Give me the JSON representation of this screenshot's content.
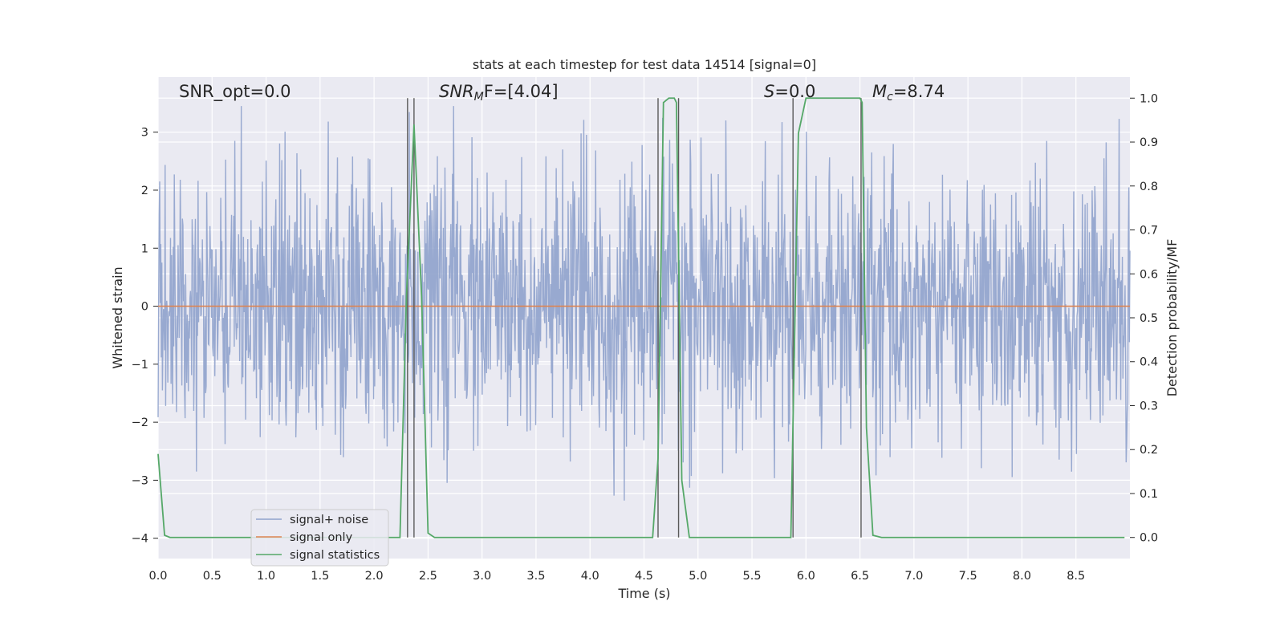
{
  "chart_data": {
    "type": "line",
    "title": "stats at each timestep for test data 14514 [signal=0]",
    "xlabel": "Time (s)",
    "ylabel": "Whitened strain",
    "y2label": "Detection probability/MF",
    "xlim": [
      0.0,
      9.0
    ],
    "ylim": [
      -4.35,
      3.95
    ],
    "y2lim": [
      -0.048,
      1.048
    ],
    "xticks": [
      "0.0",
      "0.5",
      "1.0",
      "1.5",
      "2.0",
      "2.5",
      "3.0",
      "3.5",
      "4.0",
      "4.5",
      "5.0",
      "5.5",
      "6.0",
      "6.5",
      "7.0",
      "7.5",
      "8.0",
      "8.5"
    ],
    "yticks": [
      "3",
      "2",
      "1",
      "0",
      "−1",
      "−2",
      "−3",
      "−4"
    ],
    "y2ticks": [
      "1.0",
      "0.9",
      "0.8",
      "0.7",
      "0.6",
      "0.5",
      "0.4",
      "0.3",
      "0.2",
      "0.1",
      "0.0"
    ],
    "grid": true,
    "legend_position": "lower-left",
    "annotations": {
      "snr_opt": "SNR_opt=0.0",
      "snr_mf_sym": "SNR",
      "snr_mf_sub": "M",
      "snr_mf_rest": "F=[4.04]",
      "s_sym": "S",
      "s_rest": "=0.0",
      "mc_sym": "M",
      "mc_sub": "c",
      "mc_rest": "=8.74"
    },
    "series": [
      {
        "name": "signal+ noise",
        "color": "#8fa2cc",
        "description_range": [
          -3.7,
          3.45
        ],
        "n_samples": 1800,
        "seed": 14514
      },
      {
        "name": "signal only",
        "color": "#dd8452",
        "x": [
          0.0,
          9.0
        ],
        "y": [
          0.0,
          0.0
        ]
      },
      {
        "name": "signal statistics",
        "color": "#55a868",
        "axis": "right",
        "x": [
          0.0,
          0.06,
          0.11,
          0.5,
          1.0,
          1.5,
          2.0,
          2.24,
          2.3,
          2.37,
          2.44,
          2.5,
          2.56,
          3.0,
          3.5,
          4.0,
          4.5,
          4.58,
          4.63,
          4.68,
          4.73,
          4.78,
          4.8,
          4.85,
          4.92,
          5.0,
          5.5,
          5.86,
          5.93,
          6.0,
          6.5,
          6.52,
          6.56,
          6.62,
          6.7,
          7.0,
          7.5,
          8.0,
          8.5,
          8.95
        ],
        "y": [
          0.19,
          0.005,
          0.0,
          0.0,
          0.0,
          0.0,
          0.0,
          0.0,
          0.55,
          0.94,
          0.55,
          0.01,
          0.0,
          0.0,
          0.0,
          0.0,
          0.0,
          0.0,
          0.18,
          0.99,
          1.0,
          1.0,
          0.99,
          0.13,
          0.0,
          0.0,
          0.0,
          0.0,
          0.92,
          1.0,
          1.0,
          0.99,
          0.25,
          0.005,
          0.0,
          0.0,
          0.0,
          0.0,
          0.0,
          0.0
        ]
      }
    ],
    "vlines": [
      2.31,
      2.37,
      4.63,
      4.82,
      5.88,
      6.51
    ],
    "vline_color": "#5a5a5a"
  }
}
